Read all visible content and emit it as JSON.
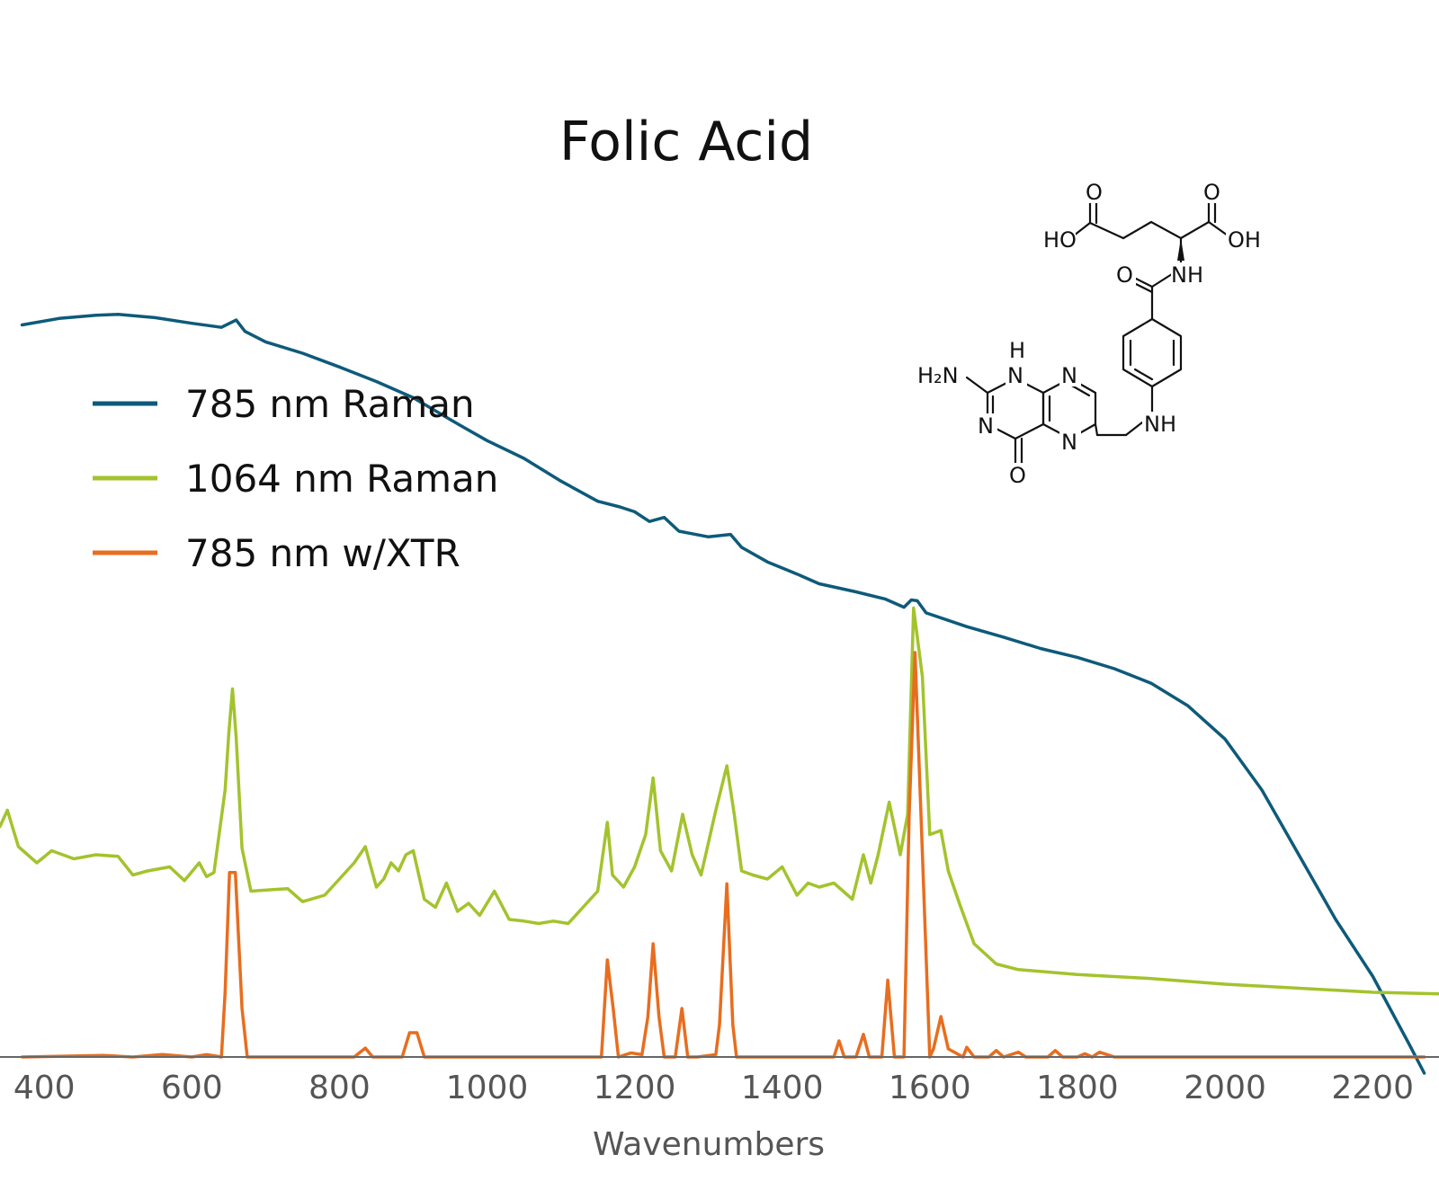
{
  "chart_data": {
    "type": "line",
    "title": "Folic Acid",
    "xlabel": "Wavenumbers",
    "ylabel": "",
    "xlim": [
      340,
      2290
    ],
    "ylim": [
      0,
      1000
    ],
    "x_ticks": [
      400,
      600,
      800,
      1000,
      1200,
      1400,
      1600,
      1800,
      2000,
      2200
    ],
    "y_axis_visible": false,
    "grid": false,
    "legend_position": "left",
    "series": [
      {
        "name": "785 nm Raman",
        "color": "#0e5a7a",
        "values": [
          [
            370,
            905
          ],
          [
            420,
            913
          ],
          [
            470,
            917
          ],
          [
            500,
            918
          ],
          [
            550,
            914
          ],
          [
            600,
            907
          ],
          [
            640,
            902
          ],
          [
            660,
            911
          ],
          [
            672,
            897
          ],
          [
            700,
            884
          ],
          [
            750,
            870
          ],
          [
            800,
            853
          ],
          [
            850,
            835
          ],
          [
            900,
            815
          ],
          [
            950,
            788
          ],
          [
            1000,
            762
          ],
          [
            1050,
            740
          ],
          [
            1100,
            712
          ],
          [
            1150,
            687
          ],
          [
            1180,
            680
          ],
          [
            1200,
            674
          ],
          [
            1220,
            662
          ],
          [
            1240,
            667
          ],
          [
            1260,
            650
          ],
          [
            1300,
            643
          ],
          [
            1330,
            646
          ],
          [
            1345,
            630
          ],
          [
            1380,
            612
          ],
          [
            1420,
            597
          ],
          [
            1450,
            585
          ],
          [
            1500,
            575
          ],
          [
            1540,
            566
          ],
          [
            1565,
            556
          ],
          [
            1575,
            565
          ],
          [
            1583,
            564
          ],
          [
            1595,
            549
          ],
          [
            1650,
            532
          ],
          [
            1700,
            519
          ],
          [
            1750,
            505
          ],
          [
            1800,
            494
          ],
          [
            1850,
            480
          ],
          [
            1900,
            462
          ],
          [
            1950,
            434
          ],
          [
            2000,
            393
          ],
          [
            2050,
            330
          ],
          [
            2100,
            250
          ],
          [
            2150,
            170
          ],
          [
            2200,
            100
          ],
          [
            2250,
            15
          ],
          [
            2270,
            -20
          ]
        ]
      },
      {
        "name": "1064 nm Raman",
        "color": "#a3c32d",
        "values": [
          [
            340,
            285
          ],
          [
            350,
            305
          ],
          [
            365,
            260
          ],
          [
            390,
            240
          ],
          [
            410,
            255
          ],
          [
            440,
            245
          ],
          [
            470,
            250
          ],
          [
            500,
            248
          ],
          [
            520,
            225
          ],
          [
            540,
            230
          ],
          [
            570,
            235
          ],
          [
            590,
            218
          ],
          [
            610,
            240
          ],
          [
            620,
            223
          ],
          [
            630,
            228
          ],
          [
            645,
            330
          ],
          [
            650,
            400
          ],
          [
            655,
            455
          ],
          [
            660,
            395
          ],
          [
            668,
            258
          ],
          [
            680,
            205
          ],
          [
            710,
            207
          ],
          [
            730,
            208
          ],
          [
            750,
            192
          ],
          [
            780,
            200
          ],
          [
            800,
            220
          ],
          [
            820,
            240
          ],
          [
            835,
            260
          ],
          [
            850,
            210
          ],
          [
            860,
            220
          ],
          [
            870,
            240
          ],
          [
            880,
            230
          ],
          [
            890,
            250
          ],
          [
            900,
            255
          ],
          [
            915,
            195
          ],
          [
            930,
            185
          ],
          [
            945,
            215
          ],
          [
            960,
            180
          ],
          [
            975,
            190
          ],
          [
            990,
            175
          ],
          [
            1010,
            205
          ],
          [
            1030,
            170
          ],
          [
            1050,
            168
          ],
          [
            1070,
            165
          ],
          [
            1090,
            168
          ],
          [
            1110,
            165
          ],
          [
            1130,
            185
          ],
          [
            1150,
            205
          ],
          [
            1163,
            290
          ],
          [
            1170,
            225
          ],
          [
            1185,
            210
          ],
          [
            1200,
            235
          ],
          [
            1215,
            275
          ],
          [
            1225,
            345
          ],
          [
            1235,
            255
          ],
          [
            1250,
            230
          ],
          [
            1265,
            300
          ],
          [
            1278,
            250
          ],
          [
            1290,
            225
          ],
          [
            1310,
            305
          ],
          [
            1325,
            360
          ],
          [
            1335,
            300
          ],
          [
            1345,
            230
          ],
          [
            1360,
            225
          ],
          [
            1380,
            220
          ],
          [
            1400,
            235
          ],
          [
            1420,
            200
          ],
          [
            1435,
            215
          ],
          [
            1450,
            210
          ],
          [
            1470,
            215
          ],
          [
            1495,
            195
          ],
          [
            1510,
            250
          ],
          [
            1520,
            215
          ],
          [
            1530,
            250
          ],
          [
            1545,
            315
          ],
          [
            1560,
            250
          ],
          [
            1570,
            300
          ],
          [
            1578,
            555
          ],
          [
            1590,
            470
          ],
          [
            1600,
            275
          ],
          [
            1615,
            280
          ],
          [
            1625,
            230
          ],
          [
            1640,
            190
          ],
          [
            1660,
            140
          ],
          [
            1690,
            115
          ],
          [
            1720,
            108
          ],
          [
            1800,
            102
          ],
          [
            1900,
            97
          ],
          [
            2000,
            90
          ],
          [
            2100,
            85
          ],
          [
            2200,
            80
          ],
          [
            2290,
            78
          ]
        ]
      },
      {
        "name": "785 nm w/XTR",
        "color": "#e86d1f",
        "values": [
          [
            370,
            0
          ],
          [
            480,
            2
          ],
          [
            520,
            0
          ],
          [
            560,
            3
          ],
          [
            600,
            0
          ],
          [
            620,
            3
          ],
          [
            640,
            0
          ],
          [
            645,
            80
          ],
          [
            651,
            228
          ],
          [
            659,
            228
          ],
          [
            668,
            60
          ],
          [
            675,
            0
          ],
          [
            820,
            0
          ],
          [
            835,
            11
          ],
          [
            845,
            0
          ],
          [
            885,
            0
          ],
          [
            895,
            30
          ],
          [
            905,
            30
          ],
          [
            915,
            0
          ],
          [
            1155,
            0
          ],
          [
            1163,
            120
          ],
          [
            1171,
            60
          ],
          [
            1178,
            0
          ],
          [
            1195,
            5
          ],
          [
            1210,
            3
          ],
          [
            1218,
            50
          ],
          [
            1225,
            140
          ],
          [
            1233,
            50
          ],
          [
            1240,
            0
          ],
          [
            1255,
            0
          ],
          [
            1264,
            60
          ],
          [
            1272,
            0
          ],
          [
            1285,
            0
          ],
          [
            1310,
            3
          ],
          [
            1315,
            40
          ],
          [
            1325,
            214
          ],
          [
            1333,
            40
          ],
          [
            1338,
            0
          ],
          [
            1470,
            0
          ],
          [
            1477,
            20
          ],
          [
            1484,
            0
          ],
          [
            1500,
            0
          ],
          [
            1510,
            28
          ],
          [
            1518,
            0
          ],
          [
            1535,
            0
          ],
          [
            1543,
            95
          ],
          [
            1552,
            0
          ],
          [
            1565,
            0
          ],
          [
            1572,
            300
          ],
          [
            1580,
            500
          ],
          [
            1588,
            300
          ],
          [
            1600,
            0
          ],
          [
            1605,
            10
          ],
          [
            1615,
            50
          ],
          [
            1625,
            10
          ],
          [
            1645,
            0
          ],
          [
            1650,
            12
          ],
          [
            1660,
            0
          ],
          [
            1680,
            0
          ],
          [
            1690,
            8
          ],
          [
            1700,
            0
          ],
          [
            1720,
            6
          ],
          [
            1730,
            0
          ],
          [
            1760,
            0
          ],
          [
            1770,
            8
          ],
          [
            1780,
            0
          ],
          [
            1800,
            0
          ],
          [
            1810,
            4
          ],
          [
            1820,
            0
          ],
          [
            1830,
            6
          ],
          [
            1840,
            3
          ],
          [
            1850,
            0
          ],
          [
            2270,
            0
          ]
        ]
      }
    ],
    "annotation": {
      "structure_labels": [
        "HO",
        "O",
        "O",
        "OH",
        "O",
        "NH",
        "H",
        "H₂N",
        "N",
        "N",
        "N",
        "N",
        "NH",
        "O"
      ]
    }
  }
}
